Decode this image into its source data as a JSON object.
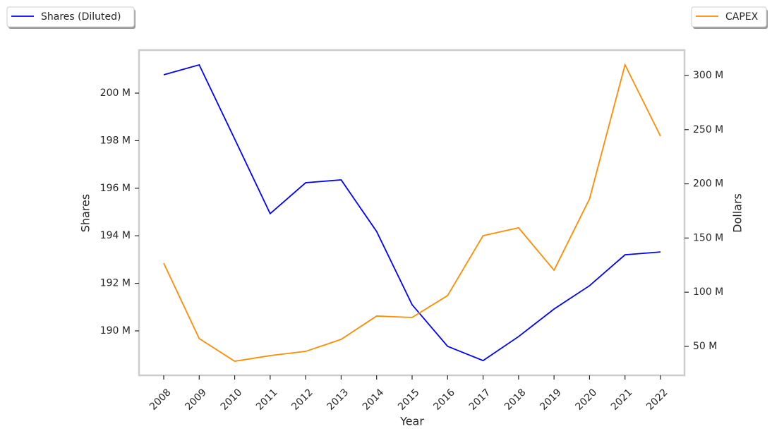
{
  "chart_data": {
    "type": "line",
    "x_label": "Year",
    "y_label": "Shares",
    "y2_label": "Dollars",
    "categories": [
      "2008",
      "2009",
      "2010",
      "2011",
      "2012",
      "2013",
      "2014",
      "2015",
      "2016",
      "2017",
      "2018",
      "2019",
      "2020",
      "2021",
      "2022"
    ],
    "series": [
      {
        "name": "Shares (Diluted)",
        "color": "#0000ff",
        "axis": "y",
        "values": [
          200770000,
          201190000,
          198070000,
          194930000,
          196230000,
          196350000,
          194180000,
          191100000,
          189350000,
          188750000,
          189760000,
          190920000,
          191900000,
          193200000,
          193320000
        ]
      },
      {
        "name": "CAPEX",
        "color": "#ff8c00",
        "axis": "y2",
        "values": [
          126800000,
          57200000,
          36300000,
          41500000,
          45400000,
          56500000,
          78000000,
          76700000,
          96900000,
          152200000,
          159400000,
          120300000,
          186100000,
          309800000,
          244000000
        ]
      }
    ],
    "ylim": [
      188130000,
      201810000
    ],
    "yticks": [
      {
        "value": 190000000,
        "label": "190 M"
      },
      {
        "value": 192000000,
        "label": "192 M"
      },
      {
        "value": 194000000,
        "label": "194 M"
      },
      {
        "value": 196000000,
        "label": "196 M"
      },
      {
        "value": 198000000,
        "label": "198 M"
      },
      {
        "value": 200000000,
        "label": "200 M"
      }
    ],
    "y2lim": [
      23300000,
      323400000
    ],
    "y2ticks": [
      {
        "value": 50000000,
        "label": "50 M"
      },
      {
        "value": 100000000,
        "label": "100 M"
      },
      {
        "value": 150000000,
        "label": "150 M"
      },
      {
        "value": 200000000,
        "label": "200 M"
      },
      {
        "value": 250000000,
        "label": "250 M"
      },
      {
        "value": 300000000,
        "label": "300 M"
      }
    ],
    "grid": false
  }
}
